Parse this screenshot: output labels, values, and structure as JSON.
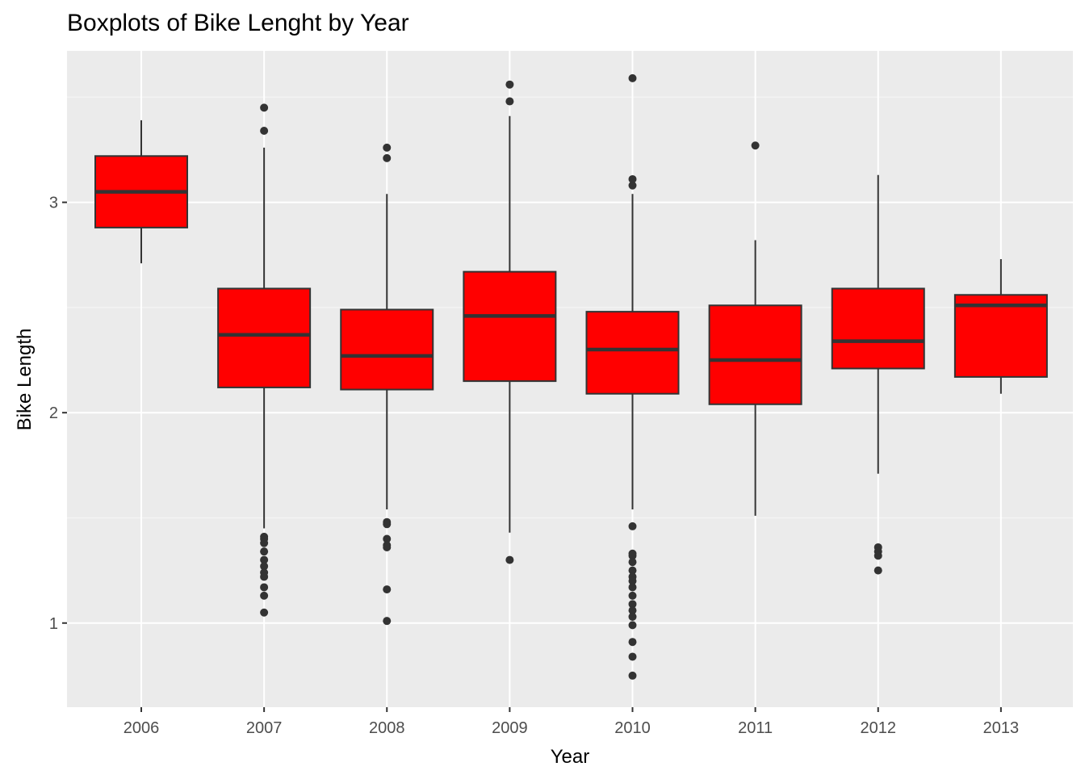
{
  "chart_data": {
    "type": "boxplot",
    "title": "Boxplots of Bike Lenght by Year",
    "xlabel": "Year",
    "ylabel": "Bike Length",
    "categories": [
      "2006",
      "2007",
      "2008",
      "2009",
      "2010",
      "2011",
      "2012",
      "2013"
    ],
    "y_ticks": [
      1,
      2,
      3
    ],
    "y_tick_labels": [
      "1",
      "2",
      "3"
    ],
    "ylim": [
      0.6,
      3.72
    ],
    "grid": true,
    "legend": "none",
    "boxes": [
      {
        "category": "2006",
        "whisker_low": 2.71,
        "q1": 2.88,
        "median": 3.05,
        "q3": 3.22,
        "whisker_high": 3.39,
        "outliers": []
      },
      {
        "category": "2007",
        "whisker_low": 1.45,
        "q1": 2.12,
        "median": 2.37,
        "q3": 2.59,
        "whisker_high": 3.26,
        "outliers": [
          1.41,
          1.4,
          1.38,
          1.34,
          1.3,
          1.27,
          1.24,
          1.22,
          1.17,
          1.13,
          1.05,
          3.34,
          3.45
        ]
      },
      {
        "category": "2008",
        "whisker_low": 1.54,
        "q1": 2.11,
        "median": 2.27,
        "q3": 2.49,
        "whisker_high": 3.04,
        "outliers": [
          1.48,
          1.47,
          1.4,
          1.37,
          1.36,
          1.16,
          1.01,
          3.21,
          3.26
        ]
      },
      {
        "category": "2009",
        "whisker_low": 1.43,
        "q1": 2.15,
        "median": 2.46,
        "q3": 2.67,
        "whisker_high": 3.41,
        "outliers": [
          1.3,
          3.48,
          3.56
        ]
      },
      {
        "category": "2010",
        "whisker_low": 1.54,
        "q1": 2.09,
        "median": 2.3,
        "q3": 2.48,
        "whisker_high": 3.04,
        "outliers": [
          1.46,
          1.33,
          1.32,
          1.29,
          1.25,
          1.22,
          1.2,
          1.17,
          1.13,
          1.09,
          1.06,
          1.03,
          0.99,
          0.91,
          0.84,
          0.75,
          3.08,
          3.11,
          3.59
        ]
      },
      {
        "category": "2011",
        "whisker_low": 1.51,
        "q1": 2.04,
        "median": 2.25,
        "q3": 2.51,
        "whisker_high": 2.82,
        "outliers": [
          3.27
        ]
      },
      {
        "category": "2012",
        "whisker_low": 1.71,
        "q1": 2.21,
        "median": 2.34,
        "q3": 2.59,
        "whisker_high": 3.13,
        "outliers": [
          1.36,
          1.34,
          1.32,
          1.25
        ]
      },
      {
        "category": "2013",
        "whisker_low": 2.09,
        "q1": 2.17,
        "median": 2.51,
        "q3": 2.56,
        "whisker_high": 2.73,
        "outliers": []
      }
    ],
    "colors": {
      "panel_background": "#ebebeb",
      "grid_major": "#ffffff",
      "grid_minor": "#f5f5f5",
      "box_fill": "#ff0000",
      "box_line": "#333333",
      "outlier": "#333333",
      "tick_label": "#4d4d4d",
      "tick_mark": "#333333"
    }
  }
}
